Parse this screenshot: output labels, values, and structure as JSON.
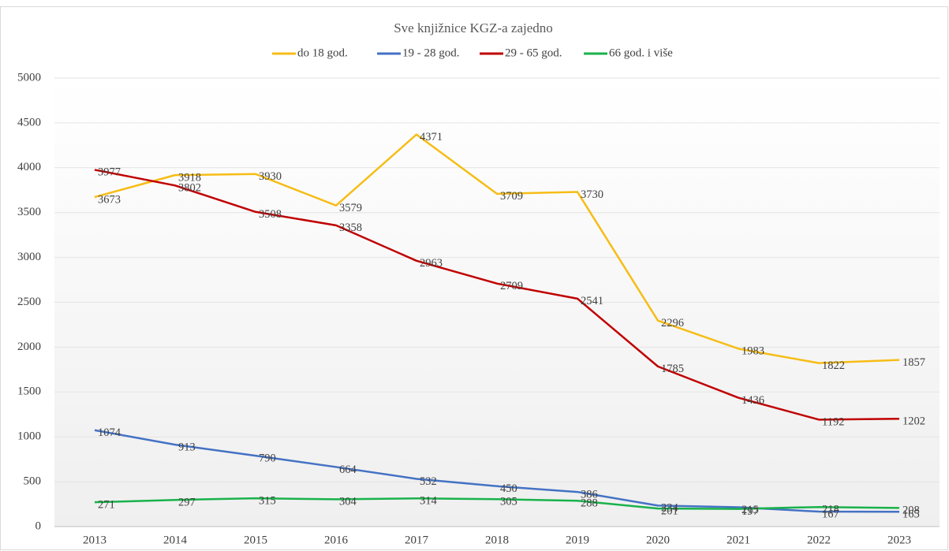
{
  "chart_data": {
    "type": "line",
    "title": "Sve knjižnice  KGZ-a zajedno",
    "categories": [
      "2013",
      "2014",
      "2015",
      "2016",
      "2017",
      "2018",
      "2019",
      "2020",
      "2021",
      "2022",
      "2023"
    ],
    "series": [
      {
        "name": "do 18 god.",
        "color": "#f6bd16",
        "values": [
          3673,
          3918,
          3930,
          3579,
          4371,
          3709,
          3730,
          2296,
          1983,
          1822,
          1857
        ]
      },
      {
        "name": "19 - 28 god.",
        "color": "#4472c4",
        "values": [
          1074,
          913,
          790,
          664,
          532,
          450,
          386,
          234,
          215,
          167,
          165
        ]
      },
      {
        "name": "29 - 65 god.",
        "color": "#c00000",
        "values": [
          3977,
          3802,
          3508,
          3358,
          2963,
          2709,
          2541,
          1785,
          1436,
          1192,
          1202
        ]
      },
      {
        "name": "66 god. i više",
        "color": "#19b24b",
        "values": [
          271,
          297,
          315,
          304,
          314,
          305,
          288,
          201,
          197,
          218,
          208
        ]
      }
    ],
    "ylim": [
      0,
      5000
    ],
    "yticks": [
      0,
      500,
      1000,
      1500,
      2000,
      2500,
      3000,
      3500,
      4000,
      4500,
      5000
    ],
    "grid": true,
    "legend": "top"
  }
}
